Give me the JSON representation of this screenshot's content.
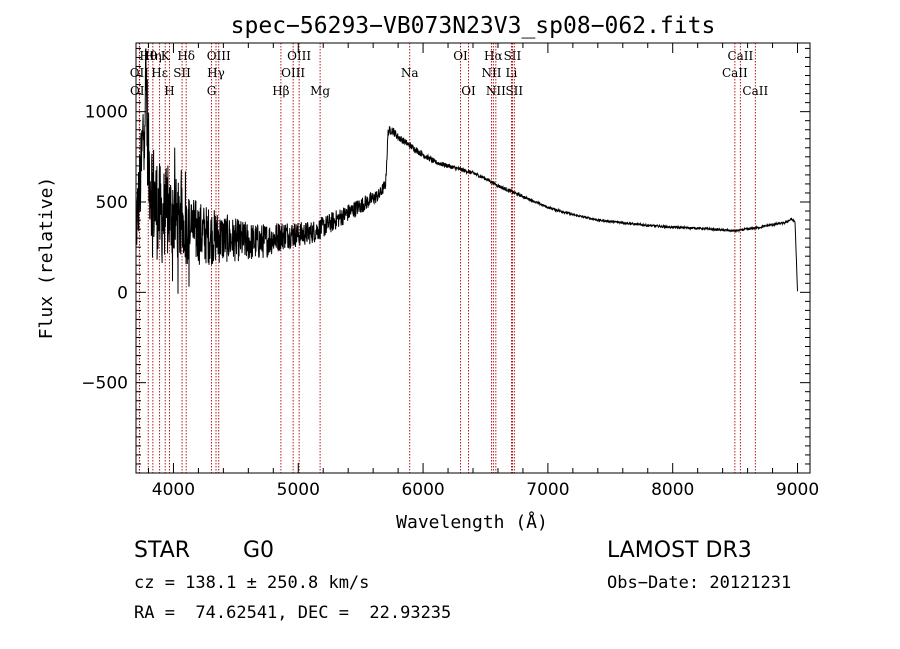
{
  "chart_data": {
    "type": "line",
    "title": "spec−56293−VB073N23V3_sp08−062.fits",
    "xlabel": "Wavelength (Å)",
    "ylabel": "Flux (relative)",
    "xlim": [
      3700,
      9100
    ],
    "ylim": [
      -1000,
      1380
    ],
    "xticks": [
      4000,
      5000,
      6000,
      7000,
      8000,
      9000
    ],
    "yticks": [
      -500,
      0,
      500,
      1000
    ],
    "ytick_labels": [
      "−500",
      "0",
      "500",
      "1000"
    ],
    "grid": false,
    "spectrum_anchors": {
      "x": [
        3700,
        3740,
        3780,
        3800,
        3850,
        3900,
        3950,
        4000,
        4050,
        4100,
        4200,
        4300,
        4400,
        4500,
        4600,
        4700,
        4800,
        4900,
        5000,
        5100,
        5200,
        5300,
        5400,
        5500,
        5600,
        5650,
        5700,
        5720,
        5750,
        5800,
        5900,
        6000,
        6100,
        6200,
        6300,
        6400,
        6500,
        6600,
        6700,
        6800,
        6900,
        7000,
        7200,
        7400,
        7600,
        7800,
        8000,
        8200,
        8400,
        8500,
        8600,
        8700,
        8800,
        8900,
        8950,
        8980,
        8990,
        9000
      ],
      "y": [
        350,
        650,
        1180,
        700,
        500,
        420,
        430,
        430,
        380,
        350,
        330,
        310,
        300,
        290,
        280,
        280,
        300,
        320,
        320,
        330,
        360,
        400,
        440,
        480,
        520,
        540,
        600,
        890,
        900,
        860,
        810,
        760,
        720,
        700,
        680,
        660,
        630,
        590,
        560,
        530,
        500,
        470,
        430,
        400,
        385,
        370,
        360,
        355,
        345,
        340,
        350,
        360,
        375,
        385,
        405,
        390,
        200,
        0
      ],
      "noise": [
        200,
        250,
        300,
        300,
        300,
        280,
        260,
        240,
        220,
        200,
        180,
        160,
        140,
        120,
        110,
        100,
        90,
        80,
        70,
        65,
        60,
        55,
        50,
        45,
        40,
        35,
        30,
        25,
        25,
        20,
        18,
        16,
        14,
        12,
        12,
        11,
        10,
        10,
        9,
        8,
        7,
        7,
        6,
        6,
        6,
        6,
        6,
        6,
        6,
        6,
        6,
        6,
        6,
        6,
        6,
        6,
        6,
        6
      ]
    },
    "line_markers": [
      {
        "label": "Hη",
        "wavelength": 3835,
        "row": 1
      },
      {
        "label": "OII",
        "wavelength": 3727,
        "row": 2
      },
      {
        "label": "OII",
        "wavelength": 3729,
        "row": 3
      },
      {
        "label": "Hθ",
        "wavelength": 3798,
        "row": 1
      },
      {
        "label": "K",
        "wavelength": 3934,
        "row": 1
      },
      {
        "label": "Hε",
        "wavelength": 3889,
        "row": 2
      },
      {
        "label": "SII",
        "wavelength": 4069,
        "row": 2
      },
      {
        "label": "H",
        "wavelength": 3968,
        "row": 3
      },
      {
        "label": "Hδ",
        "wavelength": 4102,
        "row": 1
      },
      {
        "label": "OIII",
        "wavelength": 4363,
        "row": 1
      },
      {
        "label": "Hγ",
        "wavelength": 4341,
        "row": 2
      },
      {
        "label": "G",
        "wavelength": 4305,
        "row": 3
      },
      {
        "label": "Hβ",
        "wavelength": 4861,
        "row": 3
      },
      {
        "label": "OIII",
        "wavelength": 5007,
        "row": 1
      },
      {
        "label": "OIII",
        "wavelength": 4959,
        "row": 2
      },
      {
        "label": "Mg",
        "wavelength": 5175,
        "row": 3
      },
      {
        "label": "Na",
        "wavelength": 5893,
        "row": 2
      },
      {
        "label": "OI",
        "wavelength": 6300,
        "row": 1
      },
      {
        "label": "OI",
        "wavelength": 6364,
        "row": 3
      },
      {
        "label": "Hα",
        "wavelength": 6563,
        "row": 1
      },
      {
        "label": "NII",
        "wavelength": 6548,
        "row": 2
      },
      {
        "label": "NII",
        "wavelength": 6583,
        "row": 3
      },
      {
        "label": "SII",
        "wavelength": 6716,
        "row": 1
      },
      {
        "label": "Li",
        "wavelength": 6708,
        "row": 2
      },
      {
        "label": "SII",
        "wavelength": 6731,
        "row": 3
      },
      {
        "label": "CaII",
        "wavelength": 8542,
        "row": 1
      },
      {
        "label": "CaII",
        "wavelength": 8498,
        "row": 2
      },
      {
        "label": "CaII",
        "wavelength": 8662,
        "row": 3
      }
    ]
  },
  "footer": {
    "object_class": "STAR",
    "subclass": "G0",
    "survey": "LAMOST DR3",
    "cz": "cz = 138.1 ± 250.8 km/s",
    "obs_date": "Obs−Date: 20121231",
    "coords": "RA =  74.62541, DEC =  22.93235"
  }
}
